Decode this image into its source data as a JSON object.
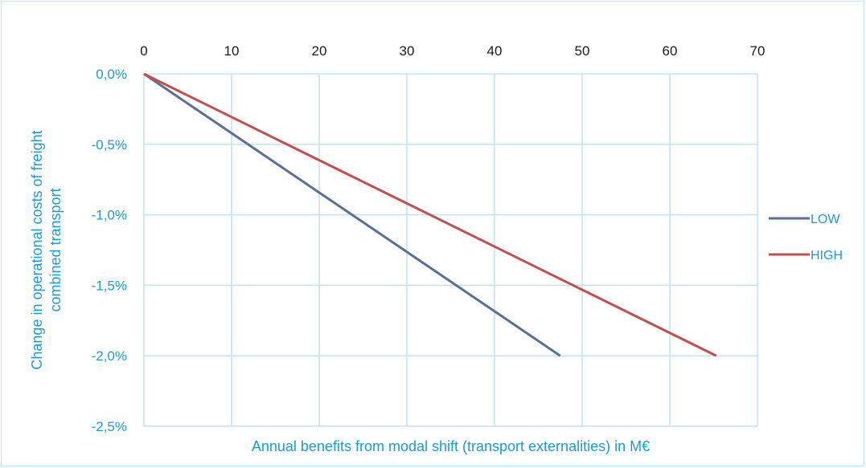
{
  "chart_data": {
    "type": "line",
    "title": "",
    "xlabel": "Annual benefits from modal shift (transport externalities) in M€",
    "ylabel_lines": [
      "Change in operational costs of freight",
      "combined transport"
    ],
    "xlim": [
      0,
      70
    ],
    "ylim": [
      -2.5,
      0
    ],
    "x_ticks": [
      0,
      10,
      20,
      30,
      40,
      50,
      60,
      70
    ],
    "x_tick_labels": [
      "0",
      "10",
      "20",
      "30",
      "40",
      "50",
      "60",
      "70"
    ],
    "y_ticks": [
      0,
      -0.5,
      -1.0,
      -1.5,
      -2.0,
      -2.5
    ],
    "y_tick_labels": [
      "0,0%",
      "-0,5%",
      "-1,0%",
      "-1,5%",
      "-2,0%",
      "-2,5%"
    ],
    "x_axis_position": "top",
    "grid": true,
    "legend_position": "right",
    "series": [
      {
        "name": "LOW",
        "color": "#5b6f96",
        "x": [
          0,
          47.5
        ],
        "y": [
          0,
          -2.0
        ]
      },
      {
        "name": "HIGH",
        "color": "#c0504d",
        "x": [
          0,
          65.3
        ],
        "y": [
          0,
          -2.0
        ]
      }
    ]
  },
  "colors": {
    "grid": "#bfe3f7",
    "axis_text": "#1a9ad6",
    "tick_text_x": "#1a1a1a"
  }
}
